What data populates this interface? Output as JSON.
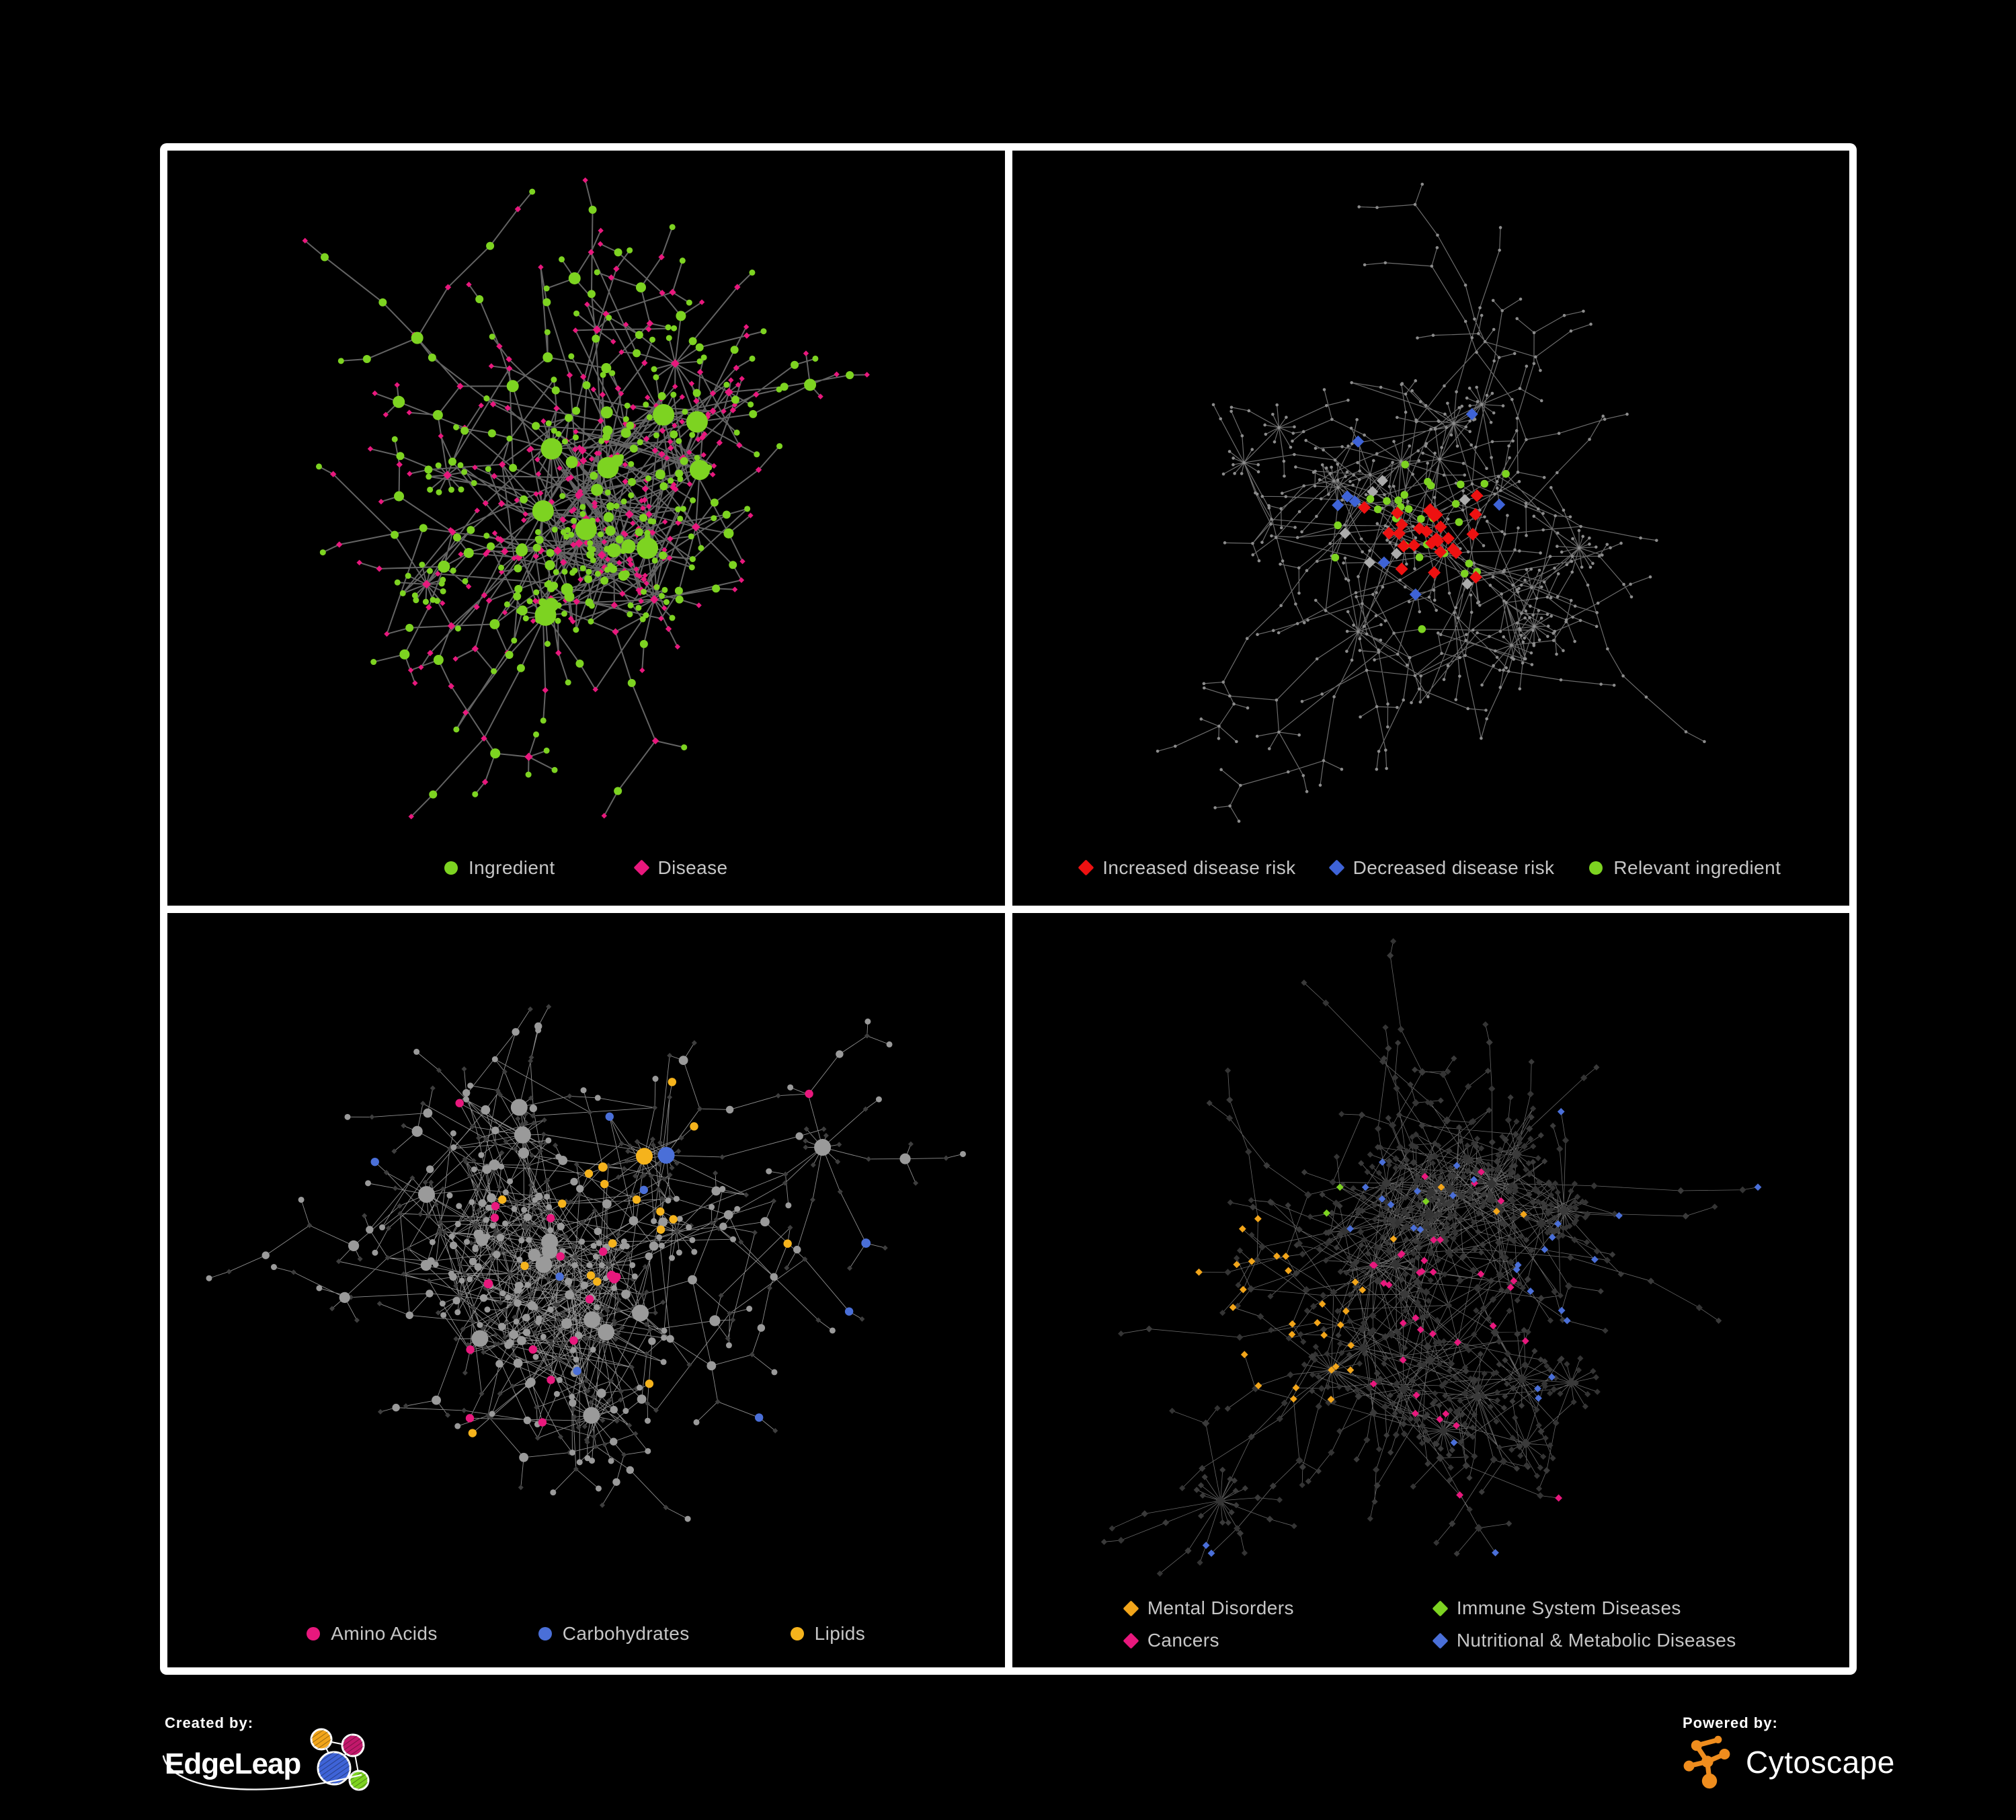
{
  "page": {
    "background": "#000000",
    "frame_color": "#ffffff"
  },
  "panels": [
    {
      "id": "ingredient-disease-network",
      "legend": [
        {
          "label": "Ingredient",
          "shape": "circle",
          "color": "#7DD321"
        },
        {
          "label": "Disease",
          "shape": "diamond",
          "color": "#E8187D"
        }
      ],
      "network": {
        "seed": 42,
        "n": 600,
        "fanProb": 0.05,
        "fanMin": 6,
        "fanMax": 15,
        "step": 46,
        "leafLen": 26,
        "web": 150,
        "webLen": 175,
        "webR": 250,
        "padX": 62,
        "padTop": 44,
        "padBottom": 132,
        "edgeColor": "#6E6E6E",
        "edgeWidth": 2.0,
        "edgeOpacity": 0.9,
        "mode": "bipartite",
        "flip": 0.13,
        "colors": {
          "ingredient": "#7DD321",
          "disease": "#E8187D"
        }
      }
    },
    {
      "id": "disease-risk-network",
      "legend": [
        {
          "label": "Increased disease risk",
          "shape": "diamond",
          "color": "#EE1111"
        },
        {
          "label": "Decreased disease risk",
          "shape": "diamond",
          "color": "#3E63D7"
        },
        {
          "label": "Relevant ingredient",
          "shape": "circle",
          "color": "#7DD321"
        }
      ],
      "network": {
        "seed": 7,
        "n": 620,
        "fanProb": 0.05,
        "fanMin": 6,
        "fanMax": 16,
        "step": 50,
        "leafLen": 30,
        "web": 40,
        "webLen": 200,
        "webR": 260,
        "padX": 70,
        "padTop": 50,
        "padBottom": 125,
        "edgeColor": "#787878",
        "edgeWidth": 1.2,
        "edgeOpacity": 0.9,
        "mode": "highlight",
        "colors": {
          "dot": "#8C8C8C",
          "increased": "#EE1111",
          "decreased": "#3E63D7",
          "neutral": "#ABABAB",
          "relevant": "#7DD321"
        },
        "counts": {
          "increased": 27,
          "decreased": 8,
          "neutral": 7,
          "relevant": 28
        }
      }
    },
    {
      "id": "ingredient-classes-network",
      "legend": [
        {
          "label": "Amino Acids",
          "shape": "circle",
          "color": "#E8187D"
        },
        {
          "label": "Carbohydrates",
          "shape": "circle",
          "color": "#4A6FD8"
        },
        {
          "label": "Lipids",
          "shape": "circle",
          "color": "#F5B31C"
        }
      ],
      "network": {
        "seed": 23,
        "n": 640,
        "fanProb": 0.055,
        "fanMin": 6,
        "fanMax": 16,
        "step": 46,
        "leafLen": 26,
        "web": 260,
        "webLen": 190,
        "webR": 290,
        "padX": 62,
        "padTop": 46,
        "padBottom": 128,
        "edgeColor": "#B3B3B3",
        "edgeWidth": 0.9,
        "edgeOpacity": 0.8,
        "mode": "ingredient-classes",
        "colors": {
          "base": "#9A9A9A",
          "disease": "#3E3E3E",
          "amino": "#E8187D",
          "carb": "#4A6FD8",
          "lipid": "#F5B31C"
        }
      }
    },
    {
      "id": "disease-classes-network",
      "legend": [
        {
          "label": "Mental Disorders",
          "shape": "diamond",
          "color": "#F2A51A"
        },
        {
          "label": "Immune System Diseases",
          "shape": "diamond",
          "color": "#7DD321"
        },
        {
          "label": "Cancers",
          "shape": "diamond",
          "color": "#E8187D"
        },
        {
          "label": "Nutritional & Metabolic Diseases",
          "shape": "diamond",
          "color": "#4A6FD8"
        }
      ],
      "network": {
        "seed": 91,
        "n": 860,
        "fanProb": 0.06,
        "fanMin": 7,
        "fanMax": 24,
        "step": 50,
        "leafLen": 27,
        "web": 140,
        "webLen": 190,
        "webR": 310,
        "padX": 56,
        "padTop": 42,
        "padBottom": 140,
        "edgeColor": "#8A8A8A",
        "edgeWidth": 0.8,
        "edgeOpacity": 0.75,
        "mode": "disease-classes",
        "colors": {
          "baseDisease": "#3A3A3A",
          "baseIngredient": "#343434",
          "mental": "#F2A51A",
          "cancer": "#E8187D",
          "immune": "#7DD321",
          "nutritional": "#4A6FD8"
        }
      }
    }
  ],
  "footer": {
    "created_by": {
      "label": "Created by:",
      "brand": "EdgeLeap",
      "logo_colors": {
        "orange": "#F2A51A",
        "pink": "#C2186B",
        "blue": "#3E63D7",
        "green": "#7DD321"
      }
    },
    "powered_by": {
      "label": "Powered by:",
      "brand": "Cytoscape",
      "logo_color": "#EF8D1E"
    }
  }
}
